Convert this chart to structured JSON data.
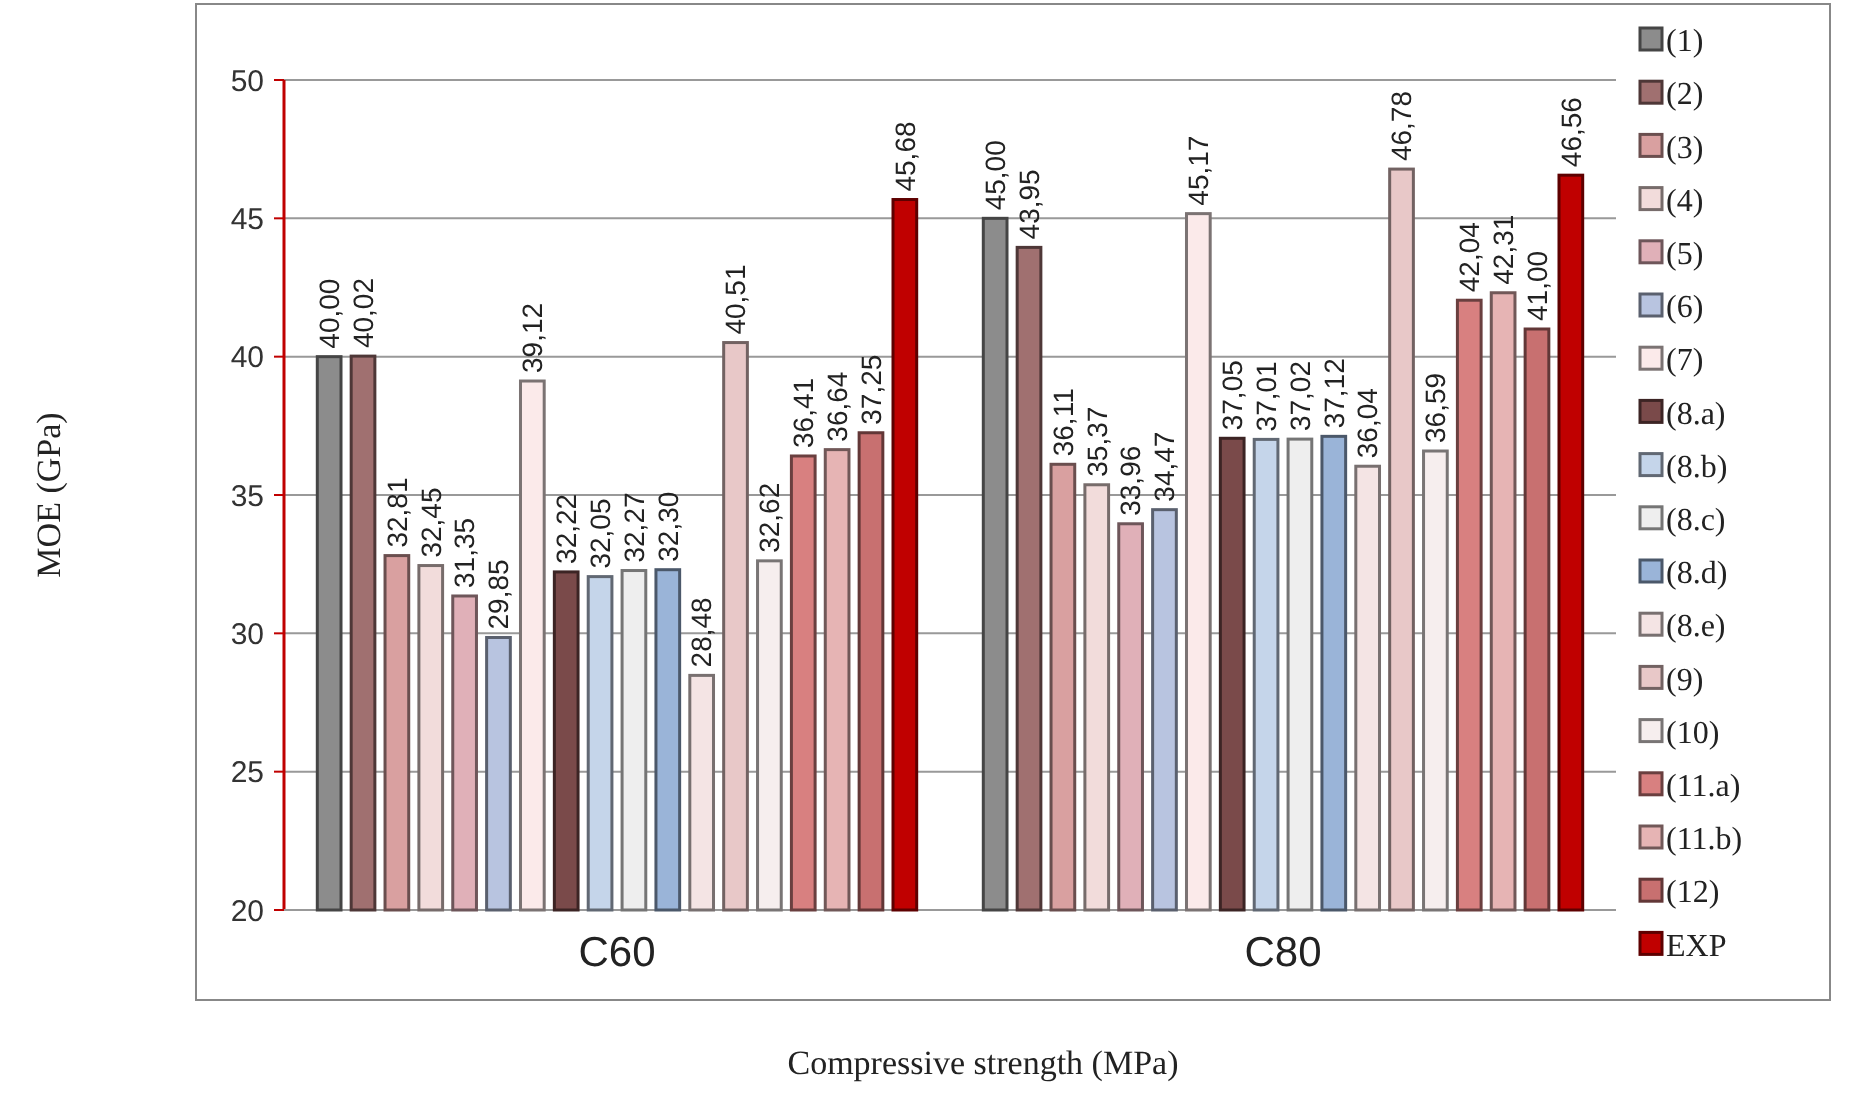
{
  "chart_data": {
    "type": "bar",
    "xlabel": "Compressive strength (MPa)",
    "ylabel": "MOE (GPa)",
    "categories": [
      "C60",
      "C80"
    ],
    "ylim": [
      20,
      50
    ],
    "yticks": [
      20,
      25,
      30,
      35,
      40,
      45,
      50
    ],
    "grid": "y",
    "legend": "right",
    "series": [
      {
        "name": "(1)",
        "color": "#8c8c8c",
        "values": [
          40.0,
          45.0
        ],
        "value_labels": [
          "40,00",
          "45,00"
        ]
      },
      {
        "name": "(2)",
        "color": "#a07070",
        "values": [
          40.02,
          43.95
        ],
        "value_labels": [
          "40,02",
          "43,95"
        ]
      },
      {
        "name": "(3)",
        "color": "#d9a0a0",
        "values": [
          32.81,
          36.11
        ],
        "value_labels": [
          "32,81",
          "36,11"
        ]
      },
      {
        "name": "(4)",
        "color": "#f2dcdb",
        "values": [
          32.45,
          35.37
        ],
        "value_labels": [
          "32,45",
          "35,37"
        ]
      },
      {
        "name": "(5)",
        "color": "#e0b0b8",
        "values": [
          31.35,
          33.96
        ],
        "value_labels": [
          "31,35",
          "33,96"
        ]
      },
      {
        "name": "(6)",
        "color": "#b8c4e0",
        "values": [
          29.85,
          34.47
        ],
        "value_labels": [
          "29,85",
          "34,47"
        ]
      },
      {
        "name": "(7)",
        "color": "#fbeaea",
        "values": [
          39.12,
          45.17
        ],
        "value_labels": [
          "39,12",
          "45,17"
        ]
      },
      {
        "name": "(8.a)",
        "color": "#7a4a4a",
        "values": [
          32.22,
          37.05
        ],
        "value_labels": [
          "32,22",
          "37,05"
        ]
      },
      {
        "name": "(8.b)",
        "color": "#c5d5ea",
        "values": [
          32.05,
          37.01
        ],
        "value_labels": [
          "32,05",
          "37,01"
        ]
      },
      {
        "name": "(8.c)",
        "color": "#eeeeee",
        "values": [
          32.27,
          37.02
        ],
        "value_labels": [
          "32,27",
          "37,02"
        ]
      },
      {
        "name": "(8.d)",
        "color": "#9ab4d8",
        "values": [
          32.3,
          37.12
        ],
        "value_labels": [
          "32,30",
          "37,12"
        ]
      },
      {
        "name": "(8.e)",
        "color": "#f4e4e4",
        "values": [
          28.48,
          36.04
        ],
        "value_labels": [
          "28,48",
          "36,04"
        ]
      },
      {
        "name": "(9)",
        "color": "#e8c8c8",
        "values": [
          40.51,
          46.78
        ],
        "value_labels": [
          "40,51",
          "46,78"
        ]
      },
      {
        "name": "(10)",
        "color": "#f6eeee",
        "values": [
          32.62,
          36.59
        ],
        "value_labels": [
          "32,62",
          "36,59"
        ]
      },
      {
        "name": "(11.a)",
        "color": "#d88080",
        "values": [
          36.41,
          42.04
        ],
        "value_labels": [
          "36,41",
          "42,04"
        ]
      },
      {
        "name": "(11.b)",
        "color": "#e6b4b4",
        "values": [
          36.64,
          42.31
        ],
        "value_labels": [
          "36,64",
          "42,31"
        ]
      },
      {
        "name": "(12)",
        "color": "#c87070",
        "values": [
          37.25,
          41.0
        ],
        "value_labels": [
          "37,25",
          "41,00"
        ]
      },
      {
        "name": "EXP",
        "color": "#c00000",
        "values": [
          45.68,
          46.56
        ],
        "value_labels": [
          "45,68",
          "46,56"
        ]
      }
    ]
  }
}
